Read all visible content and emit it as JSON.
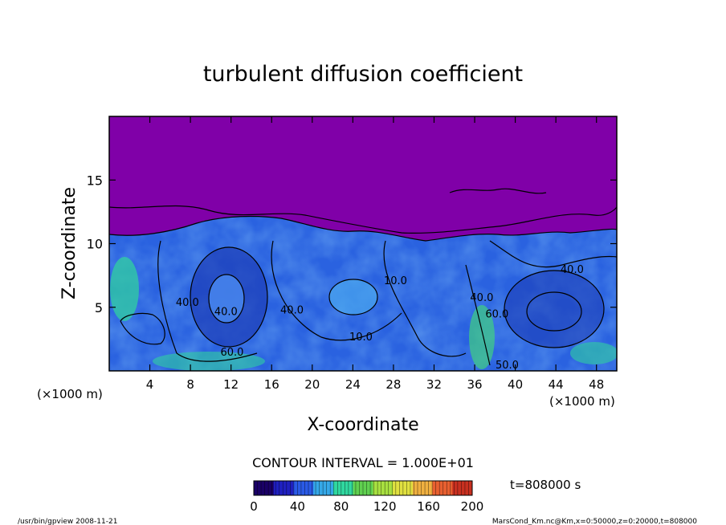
{
  "chart_data": {
    "type": "heatmap",
    "title": "turbulent diffusion coefficient",
    "xlabel": "X-coordinate",
    "ylabel": "Z-coordinate",
    "x_unit": "(×1000 m)",
    "z_unit": "(×1000 m)",
    "xlim": [
      0,
      50
    ],
    "ylim": [
      0,
      20
    ],
    "x_ticks": [
      4,
      8,
      12,
      16,
      20,
      24,
      28,
      32,
      36,
      40,
      44,
      48
    ],
    "y_ticks": [
      5,
      10,
      15
    ],
    "contour_labels": [
      {
        "text": "40.0",
        "x": 7.7,
        "z": 5.1
      },
      {
        "text": "60.0",
        "x": 12.1,
        "z": 1.2
      },
      {
        "text": "40.0",
        "x": 11.5,
        "z": 4.4
      },
      {
        "text": "40.0",
        "x": 18.0,
        "z": 4.5
      },
      {
        "text": "10.0",
        "x": 24.8,
        "z": 2.4
      },
      {
        "text": "10.0",
        "x": 28.2,
        "z": 6.8
      },
      {
        "text": "40.0",
        "x": 36.7,
        "z": 5.5
      },
      {
        "text": "60.0",
        "x": 38.2,
        "z": 4.2
      },
      {
        "text": "50.0",
        "x": 39.2,
        "z": 0.2
      },
      {
        "text": "40.0",
        "x": 45.6,
        "z": 7.7
      }
    ],
    "contour_interval_text": "CONTOUR INTERVAL = 1.000E+01",
    "colorbar": {
      "min": 0,
      "max": 200,
      "ticks": [
        0,
        40,
        80,
        120,
        160,
        200
      ],
      "colors": [
        "#1a0066",
        "#1f20c0",
        "#2a5ae6",
        "#35a8e8",
        "#30d8a0",
        "#60d050",
        "#a8e040",
        "#e0e040",
        "#f0b040",
        "#e86030",
        "#c83020"
      ]
    },
    "time_label": "t=808000 s"
  },
  "footer": {
    "left": "/usr/bin/gpview  2008-11-21",
    "right": "MarsCond_Km.nc@Km,x=0:50000,z=0:20000,t=808000"
  }
}
